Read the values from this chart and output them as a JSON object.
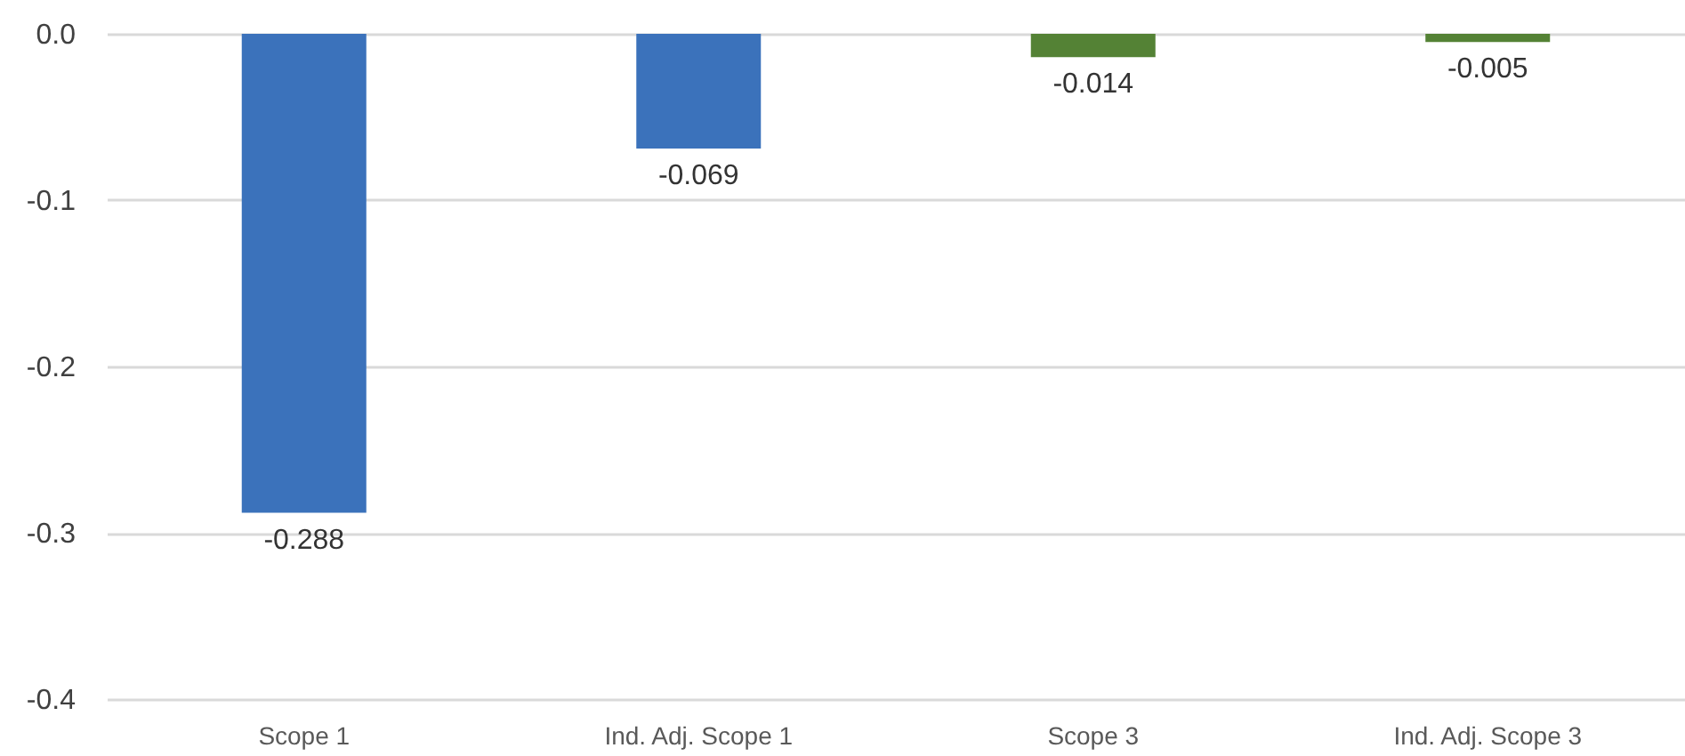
{
  "chart_data": {
    "type": "bar",
    "categories": [
      "Scope 1",
      "Ind. Adj. Scope 1",
      "Scope 3",
      "Ind. Adj. Scope 3"
    ],
    "values": [
      -0.288,
      -0.069,
      -0.014,
      -0.005
    ],
    "colors": [
      "#3b72bb",
      "#3b72bb",
      "#548235",
      "#548235"
    ],
    "ylim": [
      -0.4,
      0
    ],
    "yticks": [
      {
        "value": 0,
        "label": "0.0"
      },
      -0.1,
      -0.2,
      -0.3,
      -0.4
    ],
    "grid": "y",
    "data_labels": true
  }
}
